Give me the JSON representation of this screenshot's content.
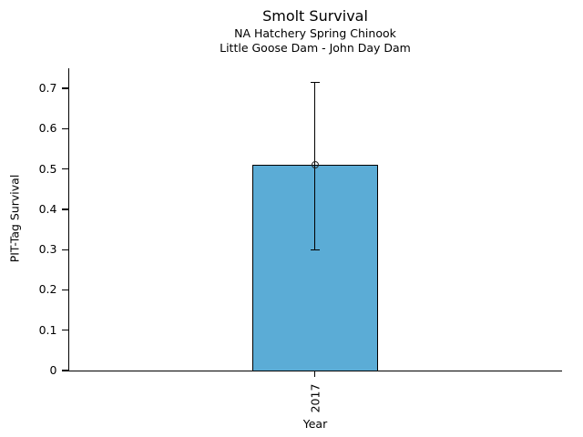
{
  "chart_data": {
    "type": "bar",
    "title": "Smolt Survival",
    "subtitles": [
      "NA Hatchery Spring Chinook",
      "Little Goose Dam - John Day Dam"
    ],
    "categories": [
      "2017"
    ],
    "values": [
      0.51
    ],
    "error_low": [
      0.3
    ],
    "error_high": [
      0.715
    ],
    "xlabel": "Year",
    "ylabel": "PIT-Tag Survival",
    "ylim": [
      0,
      0.75
    ],
    "yticks": [
      0,
      0.1,
      0.2,
      0.3,
      0.4,
      0.5,
      0.6,
      0.7
    ],
    "ytick_labels": [
      "0",
      "0.1",
      "0.2",
      "0.3",
      "0.4",
      "0.5",
      "0.6",
      "0.7"
    ],
    "grid": false,
    "legend": "none",
    "bar_color": "#5BACD6",
    "edge_color": "#000000",
    "marker": "open-circle"
  }
}
